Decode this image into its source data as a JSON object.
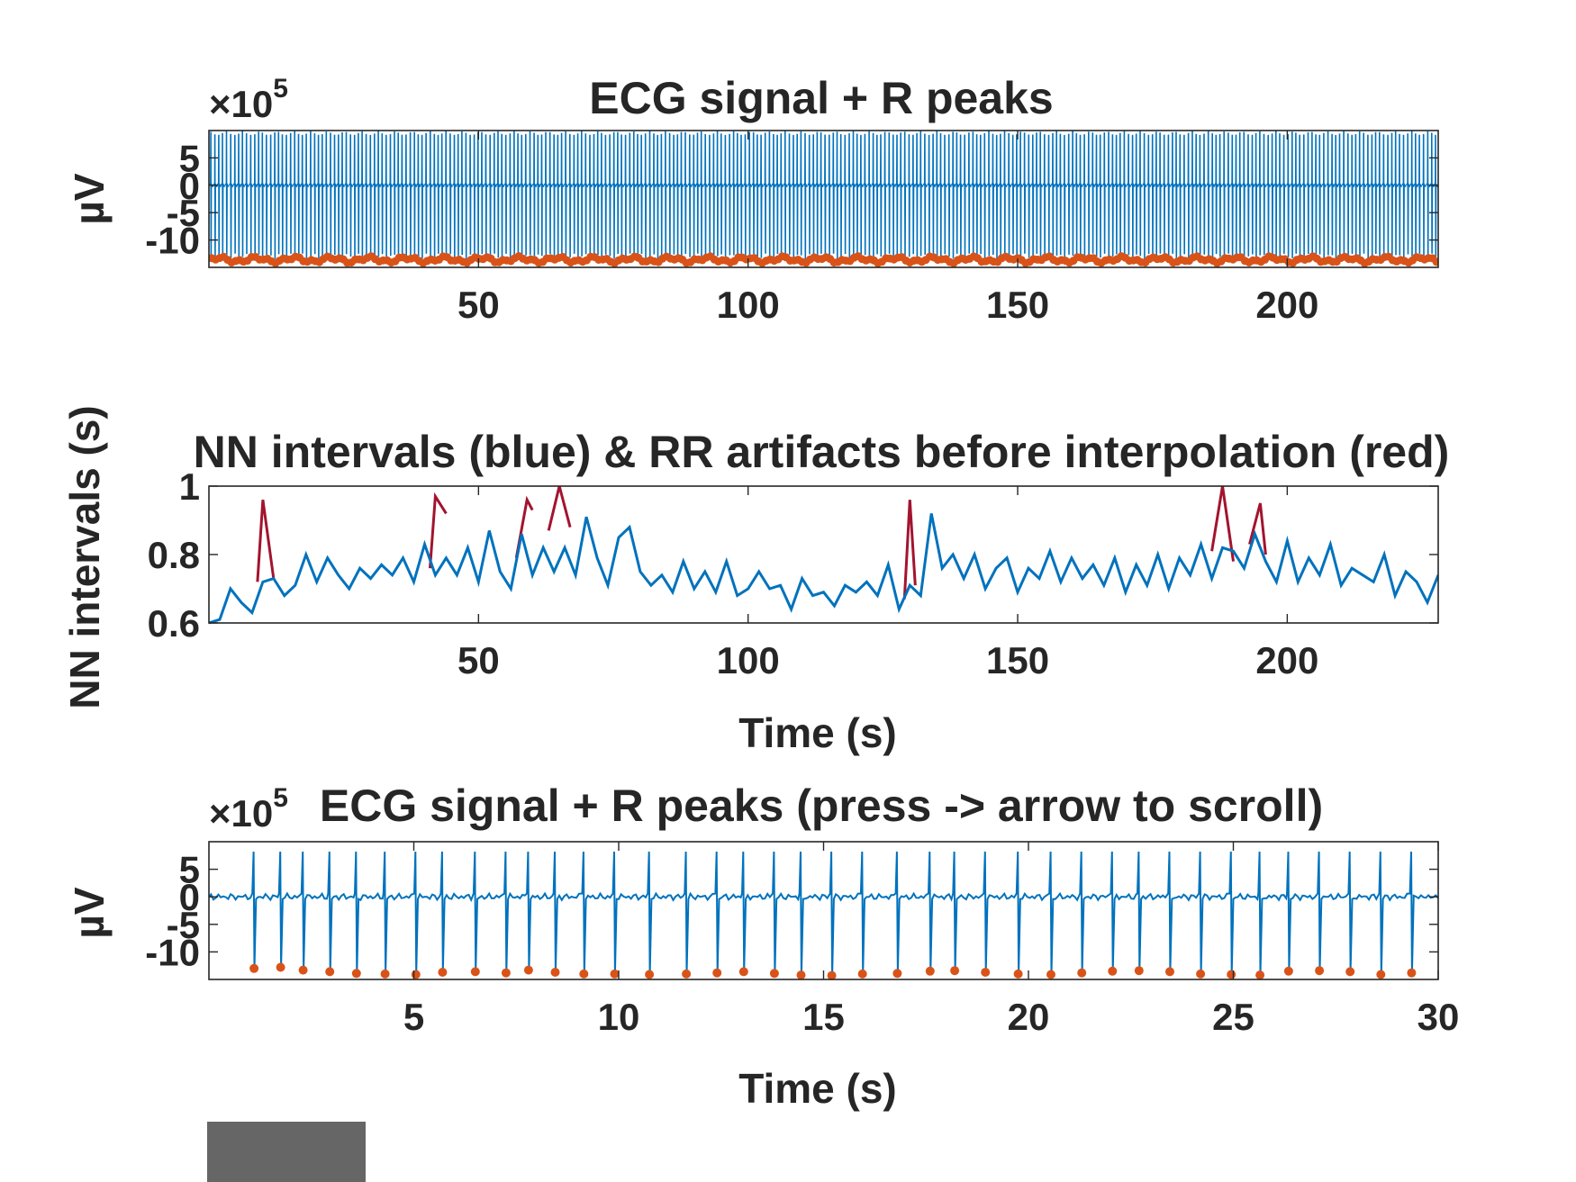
{
  "chart_data": [
    {
      "type": "line",
      "title": "ECG signal + R peaks",
      "ylabel": "µV",
      "xlabel": "",
      "y_exponent_label": "×10",
      "y_exponent_power": "5",
      "xlim": [
        0,
        228
      ],
      "ylim": [
        -15,
        10
      ],
      "xticks": [
        50,
        100,
        150,
        200
      ],
      "yticks": [
        5,
        0,
        -5,
        -10
      ],
      "ytick_labels": [
        "5",
        "0",
        "-5",
        "-10"
      ],
      "series": [
        {
          "name": "ECG signal",
          "color": "#0072BD",
          "beat_interval_s": 0.74,
          "r_amplitude": 10,
          "s_amplitude": -13,
          "baseline": 0
        },
        {
          "name": "R peaks",
          "color": "#D95319",
          "mean_value": -13.6,
          "spread": 0.6
        }
      ]
    },
    {
      "type": "line",
      "title": "NN intervals (blue) & RR artifacts before interpolation (red)",
      "ylabel": "NN intervals (s)",
      "xlabel": "Time (s)",
      "xlim": [
        0,
        228
      ],
      "ylim": [
        0.6,
        1.0
      ],
      "xticks": [
        50,
        100,
        150,
        200
      ],
      "yticks": [
        0.6,
        0.8,
        1.0
      ],
      "ytick_labels": [
        "0.6",
        "0.8",
        "1"
      ],
      "series": [
        {
          "name": "NN intervals",
          "color": "#0072BD",
          "x": [
            0,
            2,
            4,
            6,
            8,
            10,
            12,
            14,
            16,
            18,
            20,
            22,
            24,
            26,
            28,
            30,
            32,
            34,
            36,
            38,
            40,
            42,
            44,
            46,
            48,
            50,
            52,
            54,
            56,
            58,
            60,
            62,
            64,
            66,
            68,
            70,
            72,
            74,
            76,
            78,
            80,
            82,
            84,
            86,
            88,
            90,
            92,
            94,
            96,
            98,
            100,
            102,
            104,
            106,
            108,
            110,
            112,
            114,
            116,
            118,
            120,
            122,
            124,
            126,
            128,
            130,
            132,
            134,
            136,
            138,
            140,
            142,
            144,
            146,
            148,
            150,
            152,
            154,
            156,
            158,
            160,
            162,
            164,
            166,
            168,
            170,
            172,
            174,
            176,
            178,
            180,
            182,
            184,
            186,
            188,
            190,
            192,
            194,
            196,
            198,
            200,
            202,
            204,
            206,
            208,
            210,
            212,
            214,
            216,
            218,
            220,
            222,
            224,
            226,
            228
          ],
          "y": [
            0.6,
            0.61,
            0.7,
            0.66,
            0.63,
            0.72,
            0.73,
            0.68,
            0.71,
            0.8,
            0.72,
            0.79,
            0.74,
            0.7,
            0.76,
            0.73,
            0.77,
            0.74,
            0.79,
            0.72,
            0.83,
            0.74,
            0.79,
            0.74,
            0.82,
            0.72,
            0.87,
            0.75,
            0.7,
            0.86,
            0.74,
            0.82,
            0.75,
            0.82,
            0.74,
            0.91,
            0.79,
            0.71,
            0.85,
            0.88,
            0.75,
            0.71,
            0.74,
            0.69,
            0.78,
            0.7,
            0.75,
            0.69,
            0.78,
            0.68,
            0.7,
            0.75,
            0.7,
            0.71,
            0.64,
            0.73,
            0.68,
            0.69,
            0.65,
            0.71,
            0.69,
            0.72,
            0.68,
            0.77,
            0.64,
            0.71,
            0.68,
            0.92,
            0.76,
            0.8,
            0.73,
            0.8,
            0.7,
            0.76,
            0.79,
            0.69,
            0.76,
            0.73,
            0.81,
            0.72,
            0.79,
            0.73,
            0.77,
            0.71,
            0.79,
            0.69,
            0.77,
            0.71,
            0.8,
            0.7,
            0.79,
            0.74,
            0.83,
            0.73,
            0.82,
            0.81,
            0.76,
            0.86,
            0.78,
            0.72,
            0.84,
            0.72,
            0.79,
            0.74,
            0.83,
            0.71,
            0.76,
            0.74,
            0.72,
            0.8,
            0.68,
            0.75,
            0.72,
            0.66,
            0.74
          ]
        },
        {
          "name": "RR artifacts",
          "color": "#A2142F",
          "segments": [
            {
              "x": [
                9,
                10,
                12
              ],
              "y": [
                0.72,
                0.96,
                0.73
              ]
            },
            {
              "x": [
                41,
                42,
                44
              ],
              "y": [
                0.76,
                0.97,
                0.92
              ]
            },
            {
              "x": [
                57,
                59,
                60
              ],
              "y": [
                0.79,
                0.96,
                0.93
              ]
            },
            {
              "x": [
                63,
                65,
                67
              ],
              "y": [
                0.87,
                1.0,
                0.88
              ]
            },
            {
              "x": [
                129,
                130,
                131
              ],
              "y": [
                0.67,
                0.96,
                0.71
              ]
            },
            {
              "x": [
                186,
                188,
                190
              ],
              "y": [
                0.81,
                1.0,
                0.78
              ]
            },
            {
              "x": [
                193,
                195,
                196
              ],
              "y": [
                0.83,
                0.95,
                0.8
              ]
            }
          ]
        }
      ]
    },
    {
      "type": "line",
      "title": "ECG signal + R peaks (press -> arrow to scroll)",
      "ylabel": "µV",
      "xlabel": "Time (s)",
      "y_exponent_label": "×10",
      "y_exponent_power": "5",
      "xlim": [
        0,
        30
      ],
      "ylim": [
        -15,
        10
      ],
      "xticks": [
        5,
        10,
        15,
        20,
        25,
        30
      ],
      "yticks": [
        5,
        0,
        -5,
        -10
      ],
      "ytick_labels": [
        "5",
        "0",
        "-5",
        "-10"
      ],
      "series": [
        {
          "name": "ECG signal",
          "color": "#0072BD",
          "r_amplitude": 8.2,
          "s_amplitude": -13.4
        },
        {
          "name": "R peaks",
          "color": "#D95319",
          "x": [
            1.1,
            1.75,
            2.3,
            2.95,
            3.6,
            4.3,
            5.05,
            5.7,
            6.5,
            7.25,
            7.8,
            8.45,
            9.15,
            9.9,
            10.75,
            11.65,
            12.4,
            13.05,
            13.8,
            14.45,
            15.2,
            15.95,
            16.8,
            17.6,
            18.2,
            18.95,
            19.75,
            20.55,
            21.3,
            22.05,
            22.7,
            23.45,
            24.2,
            24.95,
            25.65,
            26.35,
            27.1,
            27.85,
            28.6,
            29.35
          ],
          "y": [
            -13.0,
            -12.8,
            -13.3,
            -13.6,
            -13.9,
            -14.0,
            -14.1,
            -13.7,
            -13.6,
            -13.8,
            -13.3,
            -13.7,
            -14.0,
            -14.0,
            -14.1,
            -14.0,
            -13.8,
            -13.6,
            -13.9,
            -14.2,
            -14.3,
            -14.0,
            -13.9,
            -13.5,
            -13.4,
            -13.7,
            -14.0,
            -14.1,
            -13.8,
            -13.5,
            -13.4,
            -13.6,
            -14.0,
            -14.1,
            -14.2,
            -13.5,
            -13.4,
            -13.6,
            -14.1,
            -13.8
          ]
        }
      ]
    }
  ]
}
